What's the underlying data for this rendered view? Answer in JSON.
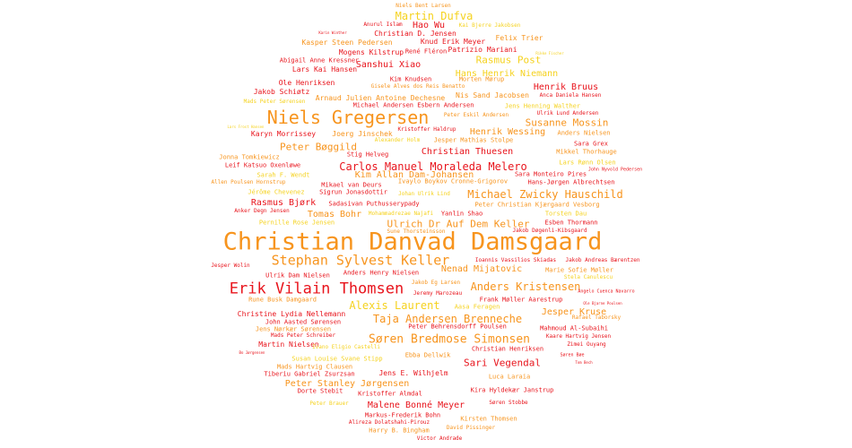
{
  "palette": {
    "red": "#e8141c",
    "orange": "#f7941d",
    "yellow": "#f5d21e"
  },
  "words": [
    {
      "text": "Christian Danvad Damsgaard",
      "color": "orange"
    },
    {
      "text": "Erik Vilain Thomsen",
      "color": "red"
    },
    {
      "text": "Niels Gregersen",
      "color": "orange"
    },
    {
      "text": "Stephan Sylvest Keller",
      "color": "orange"
    },
    {
      "text": "Søren Bredmose Simonsen",
      "color": "orange"
    },
    {
      "text": "Carlos Manuel Moraleda Melero",
      "color": "red"
    },
    {
      "text": "Michael Zwicky Hauschild",
      "color": "orange"
    },
    {
      "text": "Taja Andersen Brenneche",
      "color": "orange"
    },
    {
      "text": "Alexis Laurent",
      "color": "yellow"
    },
    {
      "text": "Anders Kristensen",
      "color": "orange"
    },
    {
      "text": "Martin Dufva",
      "color": "yellow"
    },
    {
      "text": "Ulrich Dr Auf Dem Keller",
      "color": "orange"
    },
    {
      "text": "Susanne Mossin",
      "color": "orange"
    },
    {
      "text": "Sari Vegendal",
      "color": "red"
    },
    {
      "text": "Malene Bonné Meyer",
      "color": "red"
    },
    {
      "text": "Peter Stanley Jørgensen",
      "color": "orange"
    },
    {
      "text": "Rasmus Post",
      "color": "yellow"
    },
    {
      "text": "Peter Bøggild",
      "color": "orange"
    },
    {
      "text": "Kim Allan Dam-Johansen",
      "color": "orange"
    },
    {
      "text": "Nenad Mijatovic",
      "color": "orange"
    },
    {
      "text": "Hans Henrik Niemann",
      "color": "yellow"
    },
    {
      "text": "Henrik Wessing",
      "color": "orange"
    },
    {
      "text": "Jesper Kruse",
      "color": "orange"
    },
    {
      "text": "Sanshui Xiao",
      "color": "red"
    },
    {
      "text": "Christian Thuesen",
      "color": "red"
    },
    {
      "text": "Rasmus Bjørk",
      "color": "red"
    },
    {
      "text": "Hao Wu",
      "color": "red"
    },
    {
      "text": "Henrik Bruus",
      "color": "red"
    },
    {
      "text": "Tomas Bohr",
      "color": "orange"
    },
    {
      "text": "Christine Lydia Nellemann",
      "color": "red"
    },
    {
      "text": "Martin Nielsen",
      "color": "red"
    },
    {
      "text": "Jens E. Wilhjelm",
      "color": "red"
    },
    {
      "text": "Kasper Steen Pedersen",
      "color": "orange"
    },
    {
      "text": "Mogens Kilstrup",
      "color": "red"
    },
    {
      "text": "Christian D. Jensen",
      "color": "red"
    },
    {
      "text": "Knud Erik Meyer",
      "color": "red"
    },
    {
      "text": "Felix Trier",
      "color": "orange"
    },
    {
      "text": "Lars Kai Hansen",
      "color": "red"
    },
    {
      "text": "Abigail Anne Kressner",
      "color": "red"
    },
    {
      "text": "René Fléron",
      "color": "red"
    },
    {
      "text": "Patrizio Mariani",
      "color": "red"
    },
    {
      "text": "Ole Henriksen",
      "color": "red"
    },
    {
      "text": "Jakob Schiøtz",
      "color": "red"
    },
    {
      "text": "Arnaud Julien Antoine Dechesne",
      "color": "orange"
    },
    {
      "text": "Nis Sand Jacobsen",
      "color": "orange"
    },
    {
      "text": "Michael Andersen Esbern Andersen",
      "color": "red"
    },
    {
      "text": "Mads Peter Sørensen",
      "color": "yellow"
    },
    {
      "text": "Jens Henning Walther",
      "color": "yellow"
    },
    {
      "text": "Kim Knudsen",
      "color": "red"
    },
    {
      "text": "Morten Mørup",
      "color": "orange"
    },
    {
      "text": "Gisele Alves dos Reis Benatto",
      "color": "orange"
    },
    {
      "text": "Anca Daniela Hansen",
      "color": "red"
    },
    {
      "text": "Ulrik Lund Andersen",
      "color": "red"
    },
    {
      "text": "Peter Eskil Andersen",
      "color": "orange"
    },
    {
      "text": "Karyn Morrissey",
      "color": "red"
    },
    {
      "text": "Joerg Jinschek",
      "color": "orange"
    },
    {
      "text": "Kristoffer Haldrup",
      "color": "red"
    },
    {
      "text": "Jesper Mathias Stolpe",
      "color": "orange"
    },
    {
      "text": "Alexander Holm",
      "color": "yellow"
    },
    {
      "text": "Anders Nielsen",
      "color": "orange"
    },
    {
      "text": "Sara Grex",
      "color": "red"
    },
    {
      "text": "Mikkel Thorhauge",
      "color": "orange"
    },
    {
      "text": "Lars Rønn Olsen",
      "color": "yellow"
    },
    {
      "text": "Stig Helveg",
      "color": "red"
    },
    {
      "text": "Jonna Tomkiewicz",
      "color": "orange"
    },
    {
      "text": "Leif Katsuo Oxenløwe",
      "color": "red"
    },
    {
      "text": "Sarah F. Wendt",
      "color": "yellow"
    },
    {
      "text": "Sara Monteiro Pires",
      "color": "red"
    },
    {
      "text": "Allen Poulsen Hornstrup",
      "color": "orange"
    },
    {
      "text": "Mikael van Deurs",
      "color": "red"
    },
    {
      "text": "Ivaylo Boykov Cronne-Grigorov",
      "color": "orange"
    },
    {
      "text": "Hans-Jørgen Albrechtsen",
      "color": "red"
    },
    {
      "text": "Jérôme Chevenez",
      "color": "yellow"
    },
    {
      "text": "Sigrun Jonasdottir",
      "color": "red"
    },
    {
      "text": "Johan Ulrik Lind",
      "color": "yellow"
    },
    {
      "text": "Peter Christian Kjærgaard Vesborg",
      "color": "orange"
    },
    {
      "text": "Anker Degn Jensen",
      "color": "red"
    },
    {
      "text": "Sadasivan Puthusserypady",
      "color": "red"
    },
    {
      "text": "Mohammadrezae Najafi",
      "color": "yellow"
    },
    {
      "text": "Yanlin Shao",
      "color": "red"
    },
    {
      "text": "Torsten Dau",
      "color": "yellow"
    },
    {
      "text": "Pernille Rose Jensen",
      "color": "yellow"
    },
    {
      "text": "Esben Thormann",
      "color": "red"
    },
    {
      "text": "Sune Thorsteinsson",
      "color": "orange"
    },
    {
      "text": "Jakob Døgenli-Kibsgaard",
      "color": "red"
    },
    {
      "text": "Ioannis Vassilios Skiadas",
      "color": "red"
    },
    {
      "text": "Jakob Andreas Bærentzen",
      "color": "red"
    },
    {
      "text": "Jesper Wolin",
      "color": "red"
    },
    {
      "text": "Ulrik Dam Nielsen",
      "color": "red"
    },
    {
      "text": "Anders Henry Nielsen",
      "color": "red"
    },
    {
      "text": "Marie Sofie Møller",
      "color": "orange"
    },
    {
      "text": "Stela Canulescu",
      "color": "yellow"
    },
    {
      "text": "Jakob Eg Larsen",
      "color": "orange"
    },
    {
      "text": "Jeremy Marozeau",
      "color": "red"
    },
    {
      "text": "Rune Busk Damgaard",
      "color": "orange"
    },
    {
      "text": "Frank Møller Aarestrup",
      "color": "red"
    },
    {
      "text": "Aasa Feragen",
      "color": "yellow"
    },
    {
      "text": "John Aasted Sørensen",
      "color": "red"
    },
    {
      "text": "Rafael Taborsky",
      "color": "orange"
    },
    {
      "text": "Jens Nørkær Sørensen",
      "color": "orange"
    },
    {
      "text": "Peter Behrensdorff Poulsen",
      "color": "red"
    },
    {
      "text": "Mahmoud Al-Subaihi",
      "color": "red"
    },
    {
      "text": "Mads Peter Schreiber",
      "color": "red"
    },
    {
      "text": "Kaare Hartvig Jensen",
      "color": "red"
    },
    {
      "text": "Ivano Eligio Castelli",
      "color": "yellow"
    },
    {
      "text": "Zimei Ouyang",
      "color": "red"
    },
    {
      "text": "Christian Henriksen",
      "color": "red"
    },
    {
      "text": "Susan Louise Svane Stipp",
      "color": "yellow"
    },
    {
      "text": "Ebba Dellwik",
      "color": "orange"
    },
    {
      "text": "Mads Hartvig Clausen",
      "color": "orange"
    },
    {
      "text": "Tiberiu Gabriel Zsurzsan",
      "color": "red"
    },
    {
      "text": "Luca Laraia",
      "color": "orange"
    },
    {
      "text": "Dorte Stebit",
      "color": "red"
    },
    {
      "text": "Kristoffer Almdal",
      "color": "red"
    },
    {
      "text": "Kira Hyldekær Janstrup",
      "color": "red"
    },
    {
      "text": "Peter Brauer",
      "color": "yellow"
    },
    {
      "text": "Søren Stobbe",
      "color": "red"
    },
    {
      "text": "Markus-Frederik Bohn",
      "color": "red"
    },
    {
      "text": "Alireza Dolatshahi-Pirouz",
      "color": "red"
    },
    {
      "text": "Kirsten Thomsen",
      "color": "orange"
    },
    {
      "text": "David Pissinger",
      "color": "orange"
    },
    {
      "text": "Harry B. Bingham",
      "color": "orange"
    },
    {
      "text": "Victor Andrade",
      "color": "red"
    },
    {
      "text": "Niels Bent Larsen",
      "color": "orange"
    },
    {
      "text": "Anurul Islam",
      "color": "red"
    },
    {
      "text": "Kai Bjerre Jakobsen",
      "color": "yellow"
    },
    {
      "text": "Angelo Cuenca Navarro",
      "color": "red"
    },
    {
      "text": "John Nyvold Pedersen",
      "color": "red"
    },
    {
      "text": "Karin Winther",
      "color": "red"
    },
    {
      "text": "Søren Bøe",
      "color": "red"
    },
    {
      "text": "Tom Bech",
      "color": "red"
    },
    {
      "text": "Bo Jørgensen",
      "color": "red"
    },
    {
      "text": "Rikke Fischer",
      "color": "yellow"
    },
    {
      "text": "Lars Frost Hansen",
      "color": "yellow"
    },
    {
      "text": "Ole Bjarne Poulsen",
      "color": "red"
    }
  ]
}
